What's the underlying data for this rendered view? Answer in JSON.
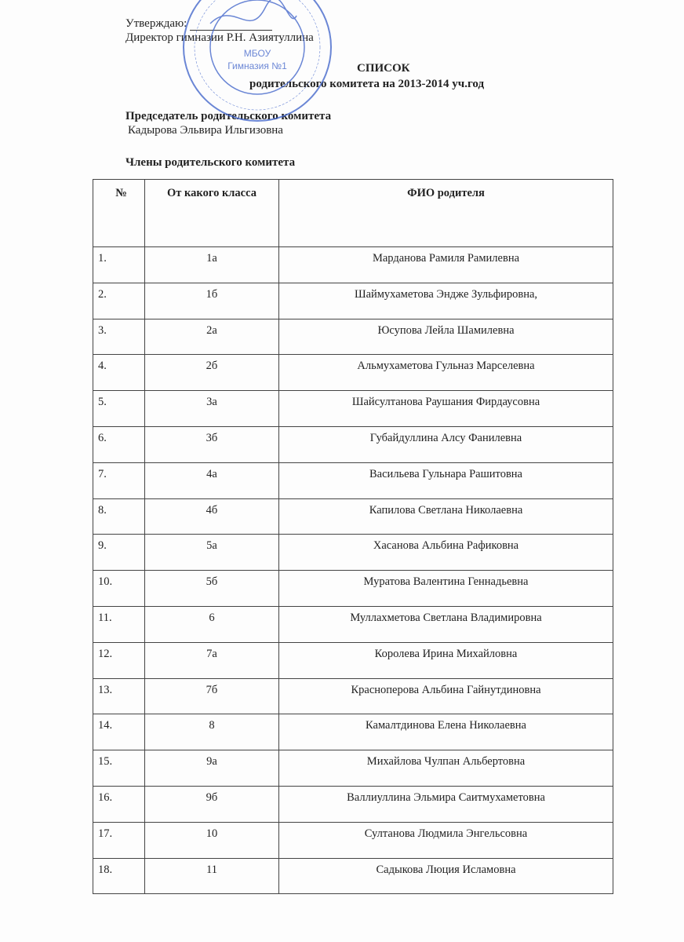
{
  "header": {
    "approve": "Утверждаю:",
    "director": "Директор гимназии Р.Н. Азиятуллина",
    "title": "СПИСОК",
    "subtitle": "родительского комитета на 2013-2014 уч.год",
    "chair_label": "Председатель родительского комитета",
    "chair_name": "Кадырова Эльвира Ильгизовна",
    "members_label": "Члены родительского комитета"
  },
  "stamp": {
    "line1": "МБОУ",
    "line2": "Гимназия №1",
    "color": "#3a5fc8"
  },
  "table": {
    "headers": [
      "№",
      "От какого класса",
      "ФИО родителя"
    ],
    "rows": [
      [
        "1.",
        "1а",
        "Марданова Рамиля Рамилевна"
      ],
      [
        "2.",
        "1б",
        "Шаймухаметова Эндже Зульфировна,"
      ],
      [
        "3.",
        "2а",
        "Юсупова Лейла Шамилевна"
      ],
      [
        "4.",
        "2б",
        "Альмухаметова Гульназ Марселевна"
      ],
      [
        "5.",
        "3а",
        "Шайсултанова  Раушания Фирдаусовна"
      ],
      [
        "6.",
        "3б",
        "Губайдуллина Алсу Фанилевна"
      ],
      [
        "7.",
        "4а",
        "Васильева Гульнара Рашитовна"
      ],
      [
        "8.",
        "4б",
        "Капилова Светлана Николаевна"
      ],
      [
        "9.",
        "5а",
        "Хасанова Альбина Рафиковна"
      ],
      [
        "10.",
        "5б",
        "Муратова Валентина Геннадьевна"
      ],
      [
        "11.",
        "6",
        "Муллахметова Светлана Владимировна"
      ],
      [
        "12.",
        "7а",
        "Королева Ирина Михайловна"
      ],
      [
        "13.",
        "7б",
        "Красноперова Альбина Гайнутдиновна"
      ],
      [
        "14.",
        "8",
        "Камалтдинова Елена Николаевна"
      ],
      [
        "15.",
        "9а",
        "Михайлова Чулпан Альбертовна"
      ],
      [
        "16.",
        "9б",
        "Валлиуллина Эльмира Саитмухаметовна"
      ],
      [
        "17.",
        "10",
        "Султанова Людмила Энгельсовна"
      ],
      [
        "18.",
        "11",
        "Садыкова Люция Исламовна"
      ]
    ]
  }
}
